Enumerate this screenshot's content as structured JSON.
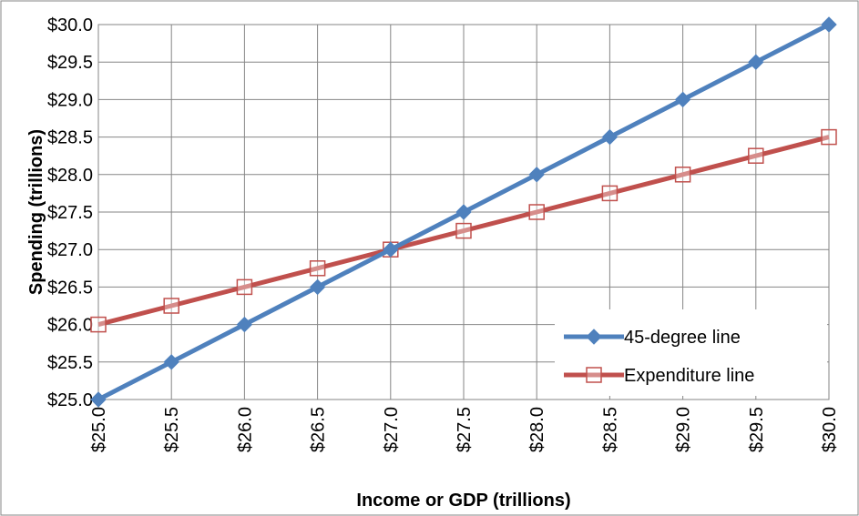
{
  "chart_data": {
    "type": "line",
    "title": "",
    "xlabel": "Income or GDP (trillions)",
    "ylabel": "Spending (trillions)",
    "xlim": [
      25,
      30
    ],
    "ylim": [
      25,
      30
    ],
    "x_ticks": [
      25.0,
      25.5,
      26.0,
      26.5,
      27.0,
      27.5,
      28.0,
      28.5,
      29.0,
      29.5,
      30.0
    ],
    "y_ticks": [
      25.0,
      25.5,
      26.0,
      26.5,
      27.0,
      27.5,
      28.0,
      28.5,
      29.0,
      29.5,
      30.0
    ],
    "x_tick_labels": [
      "$25.0",
      "$25.5",
      "$26.0",
      "$26.5",
      "$27.0",
      "$27.5",
      "$28.0",
      "$28.5",
      "$29.0",
      "$29.5",
      "$30.0"
    ],
    "y_tick_labels": [
      "$25.0",
      "$25.5",
      "$26.0",
      "$26.5",
      "$27.0",
      "$27.5",
      "$28.0",
      "$28.5",
      "$29.0",
      "$29.5",
      "$30.0"
    ],
    "grid": true,
    "legend_position": "bottom-right",
    "series": [
      {
        "name": "45-degree line",
        "color": "#4F81BD",
        "marker": "diamond",
        "x": [
          25.0,
          25.5,
          26.0,
          26.5,
          27.0,
          27.5,
          28.0,
          28.5,
          29.0,
          29.5,
          30.0
        ],
        "y": [
          25.0,
          25.5,
          26.0,
          26.5,
          27.0,
          27.5,
          28.0,
          28.5,
          29.0,
          29.5,
          30.0
        ]
      },
      {
        "name": "Expenditure line",
        "color": "#C0504D",
        "marker": "square-open",
        "x": [
          25.0,
          25.5,
          26.0,
          26.5,
          27.0,
          27.5,
          28.0,
          28.5,
          29.0,
          29.5,
          30.0
        ],
        "y": [
          26.0,
          26.25,
          26.5,
          26.75,
          27.0,
          27.25,
          27.5,
          27.75,
          28.0,
          28.25,
          28.5
        ]
      }
    ]
  }
}
